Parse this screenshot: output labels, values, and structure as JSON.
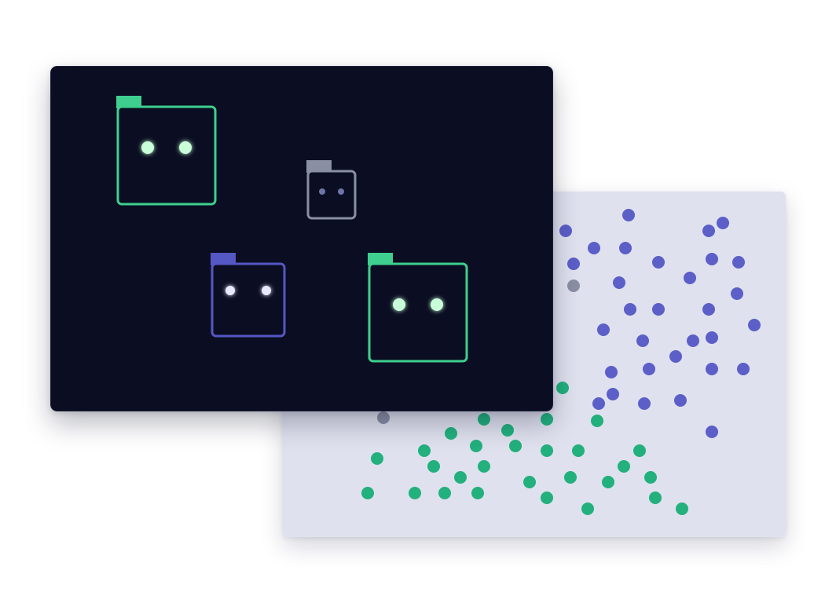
{
  "colors": {
    "page_background": "#ffffff",
    "back_panel": "#dfe1ee",
    "front_panel": "#0b0e22",
    "front_panel_border": "#1c2038",
    "green": "#22b07d",
    "green_bright": "#3ecf8e",
    "green_eye": "#c9ffd8",
    "indigo": "#5b5fc7",
    "indigo_bright": "#5557c4",
    "indigo_eye": "#e8e8ff",
    "gray": "#8a8fa3",
    "gray_eye": "#6f74a8"
  },
  "scatter": {
    "groups": [
      {
        "name": "indigo",
        "color_key": "indigo",
        "count": 32
      },
      {
        "name": "green",
        "color_key": "green",
        "count": 30
      },
      {
        "name": "gray",
        "color_key": "gray",
        "count": 2
      }
    ]
  },
  "characters": [
    {
      "name": "character-large-green",
      "color_key": "green_bright",
      "eye_key": "green_eye",
      "state": "awake"
    },
    {
      "name": "character-small-gray",
      "color_key": "gray",
      "eye_key": "gray_eye",
      "state": "dim"
    },
    {
      "name": "character-medium-indigo",
      "color_key": "indigo_bright",
      "eye_key": "indigo_eye",
      "state": "awake"
    },
    {
      "name": "character-large-green-2",
      "color_key": "green_bright",
      "eye_key": "green_eye",
      "state": "awake"
    }
  ]
}
